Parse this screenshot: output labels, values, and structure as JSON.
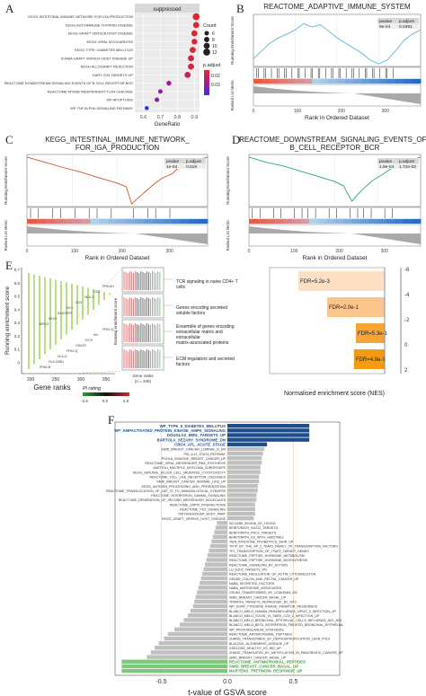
{
  "panels": {
    "A": {
      "letter": "A",
      "facet_label": "suppressed",
      "xlabel": "GeneRatio",
      "x_ticks": [
        "0.6",
        "0.7",
        "0.8",
        "0.9"
      ],
      "xlim": [
        0.55,
        0.93
      ],
      "terms": [
        "KEGG INTESTINAL IMMUNE NETWORK FOR IGA PRODUCTION",
        "KEGG AUTOIMMUNE THYROID DISEASE",
        "KEGG GRAFT VERSUS HOST DISEASE",
        "KEGG VIRAL MYOCARDITIS",
        "KEGG TYPE I DIABETES MELLITUS",
        "ICHIBA GRAFT VERSUS HOST DISEASE UP",
        "KEGG ALLOGRAFT REJECTION",
        "GARY CD5 TARGETS UP",
        "REACTOME DOWNSTREAM SIGNALING EVENTS OF B CELL RECEPTOR BCR",
        "REACTOME MYD88 INDEPENDENT TLR4 CASCADE",
        "WP APOPTOSIS",
        "WP TNF ALPHA SIGNALING PATHWAY"
      ],
      "gene_ratio": [
        0.91,
        0.91,
        0.9,
        0.9,
        0.89,
        0.88,
        0.88,
        0.86,
        0.75,
        0.7,
        0.68,
        0.62
      ],
      "count": [
        12,
        10,
        10,
        9,
        10,
        10,
        10,
        10,
        7,
        6,
        6,
        5
      ],
      "p_adjust": [
        0.008,
        0.009,
        0.009,
        0.01,
        0.009,
        0.012,
        0.011,
        0.015,
        0.025,
        0.028,
        0.03,
        0.04
      ],
      "size_legend": {
        "title": "Count",
        "values": [
          "6",
          "8",
          "10",
          "12"
        ]
      },
      "color_legend": {
        "title": "p.adjust",
        "ticks": [
          "0.02",
          "0.03"
        ],
        "colors": [
          "#e3262b",
          "#a91d8a",
          "#3a2fe0"
        ]
      }
    },
    "B": {
      "letter": "B",
      "title": "REACTOME_ADAPTIVE_IMMUNE_SYSTEM",
      "color": "#5ab4d6",
      "ylabel": "Running Enrichment Score",
      "ylabel2": "Ranked List Metric",
      "xlabel": "Rank in Ordered Dataset",
      "x_ticks": [
        "0",
        "100",
        "200",
        "300"
      ],
      "stats_header": [
        "pvalue",
        "p.adjust"
      ],
      "stats_values": [
        "9e-04",
        "0.0391"
      ]
    },
    "C": {
      "letter": "C",
      "title_line1": "KEGG_INTESTINAL_IMMUNE_NETWORK_",
      "title_line2": "FOR_IGA_PRODUCTION",
      "color": "#d1542f",
      "ylabel": "Running Enrichment Score",
      "ylabel2": "Ranked List Metric",
      "xlabel": "Rank in Ordered Dataset",
      "x_ticks": [
        "0",
        "100",
        "200",
        "300"
      ],
      "stats_header": [
        "pvalue",
        "p.adjust"
      ],
      "stats_values": [
        "1e-04",
        "0.018"
      ]
    },
    "D": {
      "letter": "D",
      "title_line1": "REACTOME_DOWNSTREAM_SIGNALING_EVENTS_OF_",
      "title_line2": "B_CELL_RECEPTOR_BCR",
      "color": "#2aa38a",
      "ylabel": "Running Enrichment Score",
      "ylabel2": "Ranked List Metric",
      "xlabel": "Rank in Ordered Dataset",
      "x_ticks": [
        "0",
        "100",
        "200",
        "300"
      ],
      "stats_header": [
        "pvalue",
        "p.adjust"
      ],
      "stats_values": [
        "1.8e-04",
        "1.74e-02"
      ]
    },
    "E": {
      "letter": "E",
      "ylabel": "Running enrichment score",
      "xlabel": "Gene ranks",
      "x_ticks": [
        "200",
        "250",
        "300",
        "350"
      ],
      "y_ticks": [
        "0.7",
        "0.6",
        "0.5",
        "0.4",
        "0.3",
        "0.2",
        "0.1",
        "0"
      ],
      "gene_labels": [
        "PRKCB",
        "HLA-DRB1",
        "HLA-G",
        "PRKCQ",
        "GRAP2",
        "CD79",
        "IKK",
        "PRKCQ",
        "BIRC5",
        "NKX2",
        "RASGRP1",
        "MY1",
        "CD3",
        "HLA-G",
        "CD3",
        "PRK491"
      ],
      "inset_ylabel": "Running enrichment score",
      "inset_xlabel": "Gene ranks",
      "inset_note": "(n = 349)",
      "pi_legend_title": "Pi rating",
      "pi_ticks": [
        "-2.5",
        "0.0",
        "2.5"
      ],
      "categories": [
        "TCR signaling in naive CD4+ T cells",
        "Genes encoding secreted soluble factors",
        "Ensemble of genes encoding extracellular matrix and extracellular matrix-associated proteins",
        "ECM regulators and secreted factors"
      ],
      "fdr_labels": [
        "FDR=5.2e-3",
        "FDR=2.0e-1",
        "FDR=5.3e-1",
        "FDR=4.8e-1"
      ],
      "nes": [
        -4.5,
        -3.0,
        -1.5,
        -1.6
      ],
      "nes_axis_ticks": [
        "-6",
        "-4",
        "-2",
        "0",
        "2"
      ],
      "nes_xlabel": "Normalised enrichment score (NES)"
    },
    "F": {
      "letter": "F",
      "xlabel": "t-value of GSVA score",
      "x_ticks": [
        "-0.5",
        "0.0",
        "0.5"
      ],
      "xlim": [
        -0.85,
        0.85
      ],
      "rows": [
        {
          "label": "WP_TYPE_II_DIABETES_MELLITUS",
          "value": 0.62,
          "group": "up"
        },
        {
          "label": "WP_AMPACTIVATED_PROTEIN_KINASE_AMPK_SIGNALING",
          "value": 0.62,
          "group": "up"
        },
        {
          "label": "DOUGLAS_BMI1_TARGETS_UP",
          "value": 0.62,
          "group": "up"
        },
        {
          "label": "BARTOLA_SEZARY_SYNDROME_DN",
          "value": 0.62,
          "group": "up"
        },
        {
          "label": "CBOX_ATL_ACUTE_STAGE",
          "value": 0.3,
          "group": "up"
        },
        {
          "label": "SMID_BREAST_CANCER_LUMINAL_B_DN",
          "value": 0.28,
          "group": "ns"
        },
        {
          "label": "PID_IL12_STAT4_PATHWAY",
          "value": 0.27,
          "group": "ns"
        },
        {
          "label": "POOLA_INVASIVE_BREAST_CANCER_UP",
          "value": 0.26,
          "group": "ns"
        },
        {
          "label": "REACTOME_VIRAL_MESSENGER_RNA_SYNTHESIS",
          "value": 0.26,
          "group": "ns"
        },
        {
          "label": "MATTIOLI_MULTIPLE_MYELOMA_SUBGROUPS",
          "value": 0.25,
          "group": "ns"
        },
        {
          "label": "KEGG_NATURAL_KILLER_CELL_MEDIATED_CYTOTOXICITY",
          "value": 0.25,
          "group": "ns"
        },
        {
          "label": "REACTOME_TOLL_LIKE_RECEPTOR_CASCADES",
          "value": 0.24,
          "group": "ns"
        },
        {
          "label": "SMID_BREAST_CANCER_NORMAL_LIKE_UP",
          "value": 0.24,
          "group": "ns"
        },
        {
          "label": "KEGG_ANTIGEN_PROCESSING_AND_PRESENTATION",
          "value": 0.23,
          "group": "ns"
        },
        {
          "label": "REACTOME_TRANSLOCATION_OF_ZAP_70_TO_IMMUNOLOGICAL_SYNAPSE",
          "value": 0.23,
          "group": "ns"
        },
        {
          "label": "REACTOME_INTERFERON_GAMMA_SIGNALING",
          "value": 0.22,
          "group": "ns"
        },
        {
          "label": "REACTOME_GENERATION_OF_SECOND_MESSENGER_MOLECULES",
          "value": 0.22,
          "group": "ns"
        },
        {
          "label": "REACTOME_ZAP70_INTERACTIONS",
          "value": 0.21,
          "group": "ns"
        },
        {
          "label": "REACTOME_PD1_SIGNALING",
          "value": 0.21,
          "group": "ns"
        },
        {
          "label": "PATTENHOOVER_BODY_PART",
          "value": 0.21,
          "group": "ns"
        },
        {
          "label": "KEGG_GRAFT_VERSUS_HOST_DISEASE",
          "value": 0.2,
          "group": "ns"
        },
        {
          "label": "MCCABE_BOUND_BY_HOXC6",
          "value": -0.08,
          "group": "ns"
        },
        {
          "label": "BENPORATH_SUZ12_TARGETS",
          "value": -0.09,
          "group": "ns"
        },
        {
          "label": "BENPORATH_PRC2_TARGETS",
          "value": -0.1,
          "group": "ns"
        },
        {
          "label": "BENPORATH_ES_WITH_H3K27ME3",
          "value": -0.11,
          "group": "ns"
        },
        {
          "label": "TIEN_INTESTINE_PROBIOTICS_24HR_UP",
          "value": -0.12,
          "group": "ns"
        },
        {
          "label": "TFCP_BY_THE_AP_2_TFAP2_FAMILY_OF_TRANSCRIPTION_FACTORS",
          "value": -0.13,
          "group": "ns"
        },
        {
          "label": "TF2_TRANSCRIPTION_OF_TFAP2_TARGET_GENES",
          "value": -0.14,
          "group": "ns"
        },
        {
          "label": "REACTOME_PEPTIDE_HORMONE_METABOLISM",
          "value": -0.15,
          "group": "ns"
        },
        {
          "label": "REACTOME_PEPTIDE_HORMONE_BIOSYNTHESIS",
          "value": -0.16,
          "group": "ns"
        },
        {
          "label": "REACTOME_SIGNALING_BY_ACTIVIN",
          "value": -0.17,
          "group": "ns"
        },
        {
          "label": "LU_EZH2_TARGETS_DN",
          "value": -0.18,
          "group": "ns"
        },
        {
          "label": "REACTOME_REGULATION_OF_ACTIN_CYTOSKELETON",
          "value": -0.19,
          "group": "ns"
        },
        {
          "label": "GRADE_COLON_AND_RECTAL_CANCER_UP",
          "value": -0.2,
          "group": "ns"
        },
        {
          "label": "NABA_SECRETED_FACTORS",
          "value": -0.21,
          "group": "ns"
        },
        {
          "label": "NABA_MATRISOME_ASSOCIATED",
          "value": -0.22,
          "group": "ns"
        },
        {
          "label": "OSUMI_TRANSFORMED_BY_LEUKEMIA_DN",
          "value": -0.23,
          "group": "ns"
        },
        {
          "label": "SMID_BREAST_CANCER_BASAL_UP",
          "value": -0.24,
          "group": "ns"
        },
        {
          "label": "TRIPATHI_TARGETS_REPRESSED_BY_MYC",
          "value": -0.25,
          "group": "ns"
        },
        {
          "label": "WP_EGFR_TYROSINE_KINASE_INHIBITOR_RESISTANCE",
          "value": -0.26,
          "group": "ns"
        },
        {
          "label": "BLANCO_MELO_HUMAN_PARAINFLUENZA_VIRUS_3_INFECTION_UP",
          "value": -0.28,
          "group": "ns"
        },
        {
          "label": "BLANCO_MELO_COVID_19_SARS_COV_2_INFECTION_UP",
          "value": -0.3,
          "group": "ns"
        },
        {
          "label": "BLANCO_MELO_BRONCHIAL_EPITHELIAL_CELLS_INFLUENZA_DEL_NS1",
          "value": -0.33,
          "group": "ns"
        },
        {
          "label": "BLANCO_MELO_BETA_INTERFERON_TREATED_BRONCHIAL_EPITHELIAL",
          "value": -0.36,
          "group": "ns"
        },
        {
          "label": "WP_PROSTAGLANDIN_SYNTHESIS",
          "value": -0.4,
          "group": "ns"
        },
        {
          "label": "REACTOME_ANTIMICROBIAL_PEPTIDES",
          "value": -0.45,
          "group": "ns"
        },
        {
          "label": "ZHANG_TRANSCRIBED_BY_DEPHOSPHORYLATION_LEHA_POLII",
          "value": -0.48,
          "group": "ns"
        },
        {
          "label": "BLALOCK_ALZHEIMERS_DISEASE_UP",
          "value": -0.52,
          "group": "ns"
        },
        {
          "label": "GSE12392_HEALTHY_VS_IBD_UP",
          "value": -0.55,
          "group": "ns"
        },
        {
          "label": "ZHANG_TRANSLATED_BY_METHYLATION_IN_PANCREATIC_CANCER_UP",
          "value": -0.58,
          "group": "ns"
        },
        {
          "label": "SMID_BREAST_CANCER_BASAL_UP",
          "value": -0.61,
          "group": "ns"
        },
        {
          "label": "REACTOME_ANTIMICROBIAL_PEPTIDES",
          "value": -0.8,
          "group": "down"
        },
        {
          "label": "SMID_BREAST_CANCER_BASAL_UP",
          "value": -0.8,
          "group": "down"
        },
        {
          "label": "MARTENS_TRETINOIN_RESPONSE_UP",
          "value": -0.8,
          "group": "down"
        }
      ],
      "colors": {
        "up": "#1f4e8c",
        "ns": "#bfbfbf",
        "down": "#7ec87a"
      }
    }
  }
}
